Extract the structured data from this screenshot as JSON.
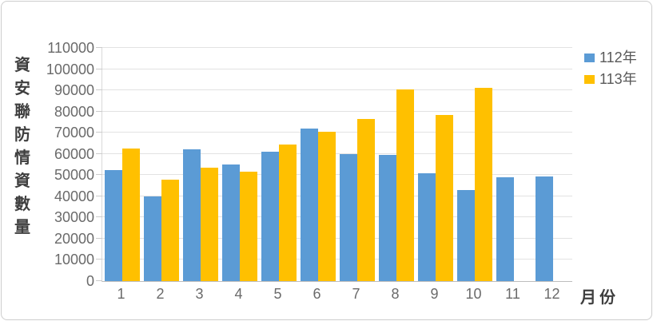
{
  "chart_data": {
    "type": "bar",
    "title": "",
    "categories": [
      "1",
      "2",
      "3",
      "4",
      "5",
      "6",
      "7",
      "8",
      "9",
      "10",
      "11",
      "12"
    ],
    "series": [
      {
        "name": "112年",
        "color": "#5B9BD5",
        "values": [
          52500,
          40000,
          62000,
          55000,
          61000,
          72000,
          60000,
          59500,
          51000,
          43000,
          49000,
          49500
        ]
      },
      {
        "name": "113年",
        "color": "#FFC000",
        "values": [
          62500,
          48000,
          53500,
          51500,
          64500,
          70500,
          76500,
          90500,
          78500,
          91000,
          null,
          null
        ]
      }
    ],
    "xlabel": "月份",
    "ylabel": "資安聯防情資數量",
    "ylim": [
      0,
      110000
    ],
    "ytick_step": 10000,
    "ytick_labels": [
      "0",
      "10000",
      "20000",
      "30000",
      "40000",
      "50000",
      "60000",
      "70000",
      "80000",
      "90000",
      "100000",
      "110000"
    ],
    "grid": true,
    "legend_position": "top-right"
  },
  "legend": {
    "items": [
      {
        "label": "112年",
        "color": "#5B9BD5"
      },
      {
        "label": "113年",
        "color": "#FFC000"
      }
    ]
  }
}
